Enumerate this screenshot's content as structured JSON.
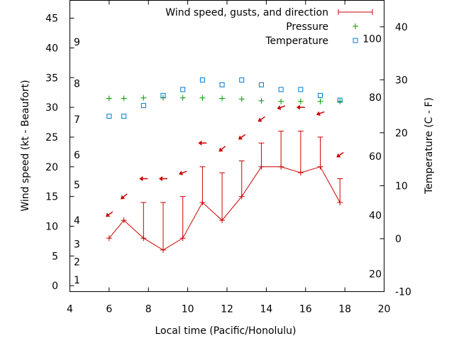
{
  "chart_data": {
    "type": "line",
    "xlabel": "Local time (Pacific/Honolulu)",
    "ylabel_left": "Wind speed (kt - Beaufort)",
    "ylabel_right": "Temperature (C - F)",
    "xlim": [
      4,
      20
    ],
    "x_ticks": [
      4,
      6,
      8,
      10,
      12,
      14,
      16,
      18,
      20
    ],
    "ylim_left": [
      -1,
      48
    ],
    "y_ticks_left": [
      0,
      5,
      10,
      15,
      20,
      25,
      30,
      35,
      40,
      45
    ],
    "beaufort_labels": [
      1,
      2,
      3,
      4,
      5,
      6,
      7,
      8,
      9
    ],
    "beaufort_positions": [
      1.0,
      4.0,
      7.0,
      11.0,
      17.0,
      22.0,
      28.0,
      34.0,
      41.0
    ],
    "ylim_right_c": [
      -10,
      45
    ],
    "y_ticks_right_c": [
      -10,
      0,
      10,
      20,
      30,
      40
    ],
    "y_ticks_right_f": [
      20,
      40,
      60,
      80,
      100
    ],
    "legend": [
      {
        "label": "Wind speed, gusts, and direction",
        "symbol": "errorbar",
        "color": "#cc0000"
      },
      {
        "label": "Pressure",
        "symbol": "plus",
        "color": "#009900"
      },
      {
        "label": "Temperature",
        "symbol": "square",
        "color": "#0077cc"
      }
    ],
    "legend_placement": "top-right",
    "wind": {
      "x": [
        6,
        6.75,
        7.75,
        8.75,
        9.75,
        10.75,
        11.75,
        12.75,
        13.75,
        14.75,
        15.75,
        16.75,
        17.75
      ],
      "speed": [
        8,
        11,
        8,
        6,
        8,
        14,
        11,
        15,
        20,
        20,
        19,
        20,
        14
      ],
      "gust": [
        8,
        11,
        14,
        14,
        15,
        20,
        19,
        21,
        24,
        26,
        26,
        25,
        18
      ],
      "arrow_y": [
        12,
        15,
        18,
        18,
        19,
        24,
        23,
        25,
        28,
        30,
        30,
        29,
        22
      ]
    },
    "pressure": {
      "x": [
        6,
        6.75,
        7.75,
        8.75,
        9.75,
        10.75,
        11.75,
        12.75,
        13.75,
        14.75,
        15.75,
        16.75,
        17.75
      ],
      "y": [
        31.5,
        31.5,
        31.6,
        31.6,
        31.6,
        31.6,
        31.5,
        31.4,
        31.1,
        31.0,
        31.0,
        31.0,
        31.0
      ]
    },
    "temperature": {
      "x": [
        6,
        6.75,
        7.75,
        8.75,
        9.75,
        10.75,
        11.75,
        12.75,
        13.75,
        14.75,
        15.75,
        16.75,
        17.75
      ],
      "y": [
        28.5,
        28.5,
        30.3,
        32.0,
        33.0,
        34.6,
        33.8,
        34.6,
        33.8,
        33.0,
        33.0,
        32.0,
        31.2
      ]
    }
  }
}
